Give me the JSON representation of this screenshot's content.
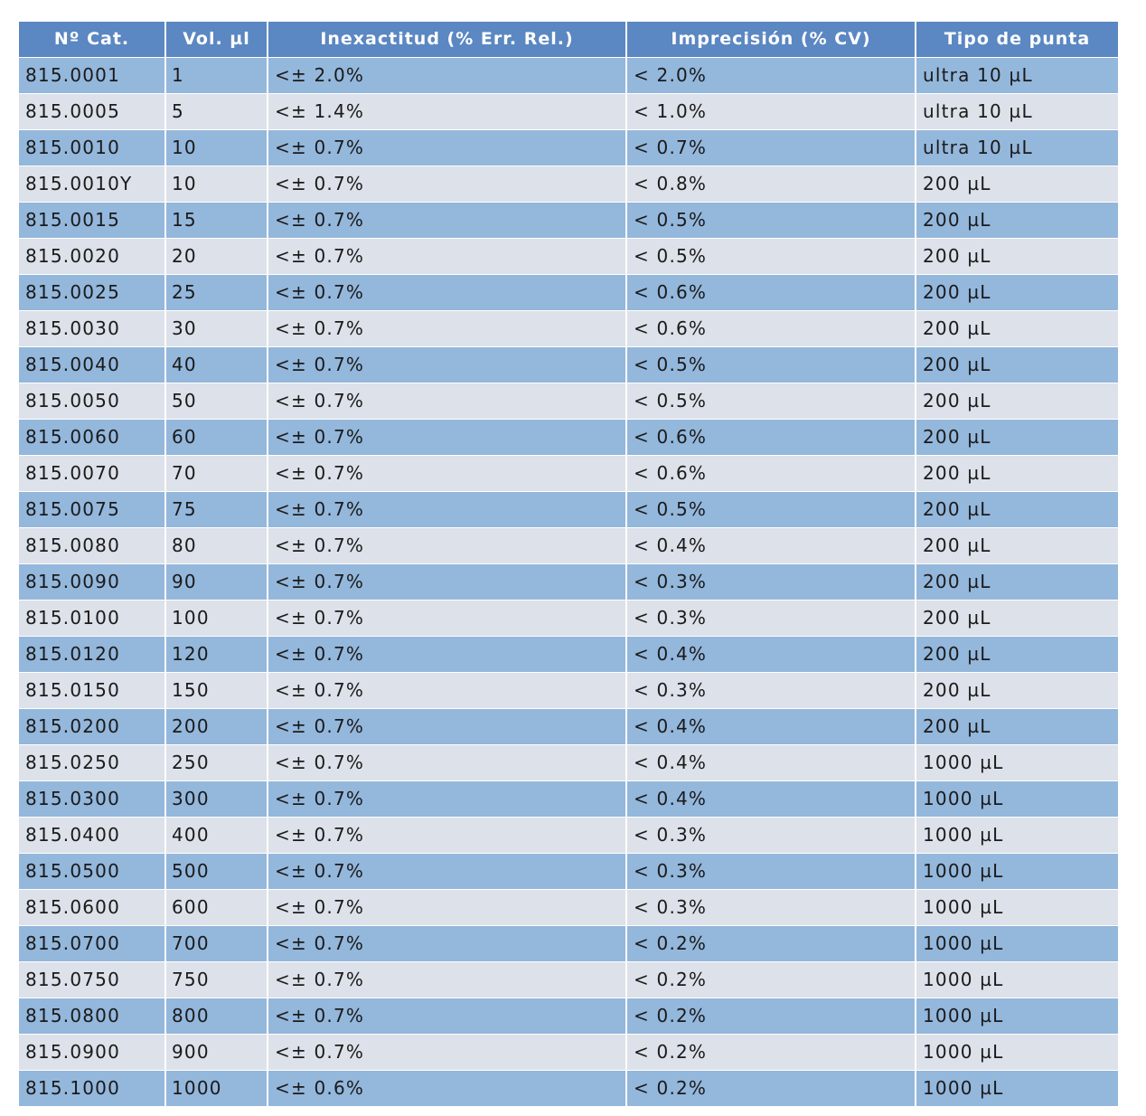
{
  "table": {
    "headers": [
      "Nº Cat.",
      "Vol. µl",
      "Inexactitud (% Err. Rel.)",
      "Imprecisión (% CV)",
      "Tipo de punta"
    ],
    "rows": [
      [
        "815.0001",
        "1",
        "<± 2.0%",
        "< 2.0%",
        "ultra 10 µL"
      ],
      [
        "815.0005",
        "5",
        "<± 1.4%",
        "< 1.0%",
        "ultra 10 µL"
      ],
      [
        "815.0010",
        "10",
        "<± 0.7%",
        "< 0.7%",
        "ultra 10 µL"
      ],
      [
        "815.0010Y",
        "10",
        "<± 0.7%",
        "< 0.8%",
        "200 µL"
      ],
      [
        "815.0015",
        "15",
        "<± 0.7%",
        "< 0.5%",
        "200 µL"
      ],
      [
        "815.0020",
        "20",
        "<± 0.7%",
        "< 0.5%",
        "200 µL"
      ],
      [
        "815.0025",
        "25",
        "<± 0.7%",
        "< 0.6%",
        "200 µL"
      ],
      [
        "815.0030",
        "30",
        "<± 0.7%",
        "< 0.6%",
        "200 µL"
      ],
      [
        "815.0040",
        "40",
        "<± 0.7%",
        "< 0.5%",
        "200 µL"
      ],
      [
        "815.0050",
        "50",
        "<± 0.7%",
        "< 0.5%",
        "200 µL"
      ],
      [
        "815.0060",
        "60",
        "<± 0.7%",
        "< 0.6%",
        "200 µL"
      ],
      [
        "815.0070",
        "70",
        "<± 0.7%",
        "< 0.6%",
        "200 µL"
      ],
      [
        "815.0075",
        "75",
        "<± 0.7%",
        "< 0.5%",
        "200 µL"
      ],
      [
        "815.0080",
        "80",
        "<± 0.7%",
        "< 0.4%",
        "200 µL"
      ],
      [
        "815.0090",
        "90",
        "<± 0.7%",
        "< 0.3%",
        "200 µL"
      ],
      [
        "815.0100",
        "100",
        "<± 0.7%",
        "< 0.3%",
        "200 µL"
      ],
      [
        "815.0120",
        "120",
        "<± 0.7%",
        "< 0.4%",
        "200 µL"
      ],
      [
        "815.0150",
        "150",
        "<± 0.7%",
        "< 0.3%",
        "200 µL"
      ],
      [
        "815.0200",
        "200",
        "<± 0.7%",
        "< 0.4%",
        "200 µL"
      ],
      [
        "815.0250",
        "250",
        "<± 0.7%",
        "< 0.4%",
        "1000 µL"
      ],
      [
        "815.0300",
        "300",
        "<± 0.7%",
        "< 0.4%",
        "1000 µL"
      ],
      [
        "815.0400",
        "400",
        "<± 0.7%",
        "< 0.3%",
        "1000 µL"
      ],
      [
        "815.0500",
        "500",
        "<± 0.7%",
        "< 0.3%",
        "1000 µL"
      ],
      [
        "815.0600",
        "600",
        "<± 0.7%",
        "< 0.3%",
        "1000 µL"
      ],
      [
        "815.0700",
        "700",
        "<± 0.7%",
        "< 0.2%",
        "1000 µL"
      ],
      [
        "815.0750",
        "750",
        "<± 0.7%",
        "< 0.2%",
        "1000 µL"
      ],
      [
        "815.0800",
        "800",
        "<± 0.7%",
        "< 0.2%",
        "1000 µL"
      ],
      [
        "815.0900",
        "900",
        "<± 0.7%",
        "< 0.2%",
        "1000 µL"
      ],
      [
        "815.1000",
        "1000",
        "<± 0.6%",
        "< 0.2%",
        "1000 µL"
      ]
    ]
  },
  "colors": {
    "header_bg": "#5b87c2",
    "header_text": "#ffffff",
    "row_odd_bg": "#94b7dc",
    "row_even_bg": "#dde1e9"
  }
}
